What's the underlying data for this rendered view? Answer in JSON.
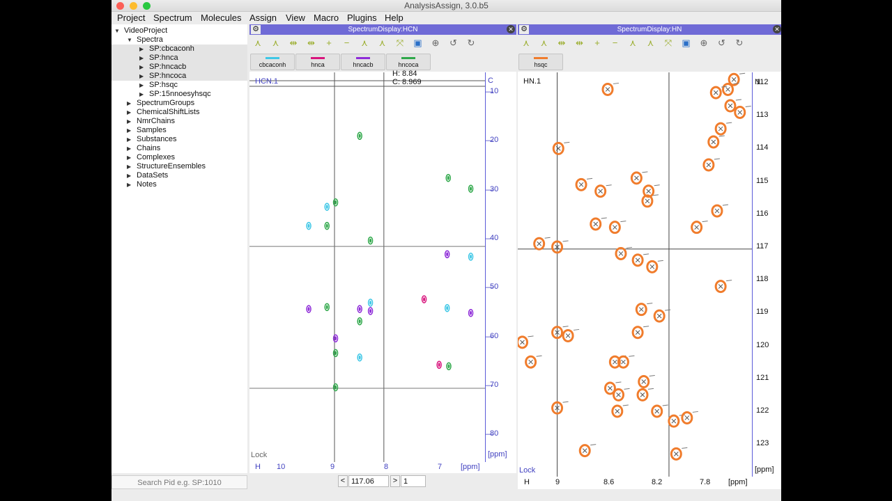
{
  "window": {
    "title": "AnalysisAssign, 3.0.b5"
  },
  "menu": [
    "Project",
    "Spectrum",
    "Molecules",
    "Assign",
    "View",
    "Macro",
    "Plugins",
    "Help"
  ],
  "sidebar": {
    "items": [
      {
        "label": "VideoProject",
        "level": 0,
        "expanded": true
      },
      {
        "label": "Spectra",
        "level": 1,
        "expanded": true
      },
      {
        "label": "SP:cbcaconh",
        "level": 2,
        "selected": true
      },
      {
        "label": "SP:hnca",
        "level": 2,
        "selected": true
      },
      {
        "label": "SP:hncacb",
        "level": 2,
        "selected": true
      },
      {
        "label": "SP:hncoca",
        "level": 2,
        "selected": true
      },
      {
        "label": "SP:hsqc",
        "level": 2
      },
      {
        "label": "SP:15nnoesyhsqc",
        "level": 2
      },
      {
        "label": "SpectrumGroups",
        "level": 1
      },
      {
        "label": "ChemicalShiftLists",
        "level": 1
      },
      {
        "label": "NmrChains",
        "level": 1
      },
      {
        "label": "Samples",
        "level": 1
      },
      {
        "label": "Substances",
        "level": 1
      },
      {
        "label": "Chains",
        "level": 1
      },
      {
        "label": "Complexes",
        "level": 1
      },
      {
        "label": "StructureEnsembles",
        "level": 1
      },
      {
        "label": "DataSets",
        "level": 1
      },
      {
        "label": "Notes",
        "level": 1
      }
    ],
    "search_placeholder": "Search Pid e.g. SP:1010"
  },
  "display1": {
    "title": "SpectrumDisplay:HCN",
    "tabs": [
      {
        "label": "cbcaconh",
        "color": "#3ec7e6"
      },
      {
        "label": "hnca",
        "color": "#d8157d"
      },
      {
        "label": "hncacb",
        "color": "#8e2bd8"
      },
      {
        "label": "hncoca",
        "color": "#2fa84a"
      }
    ],
    "strip_label": "HCN.1",
    "cursor_readout": {
      "line1": "H: 8.84",
      "line2": "C: 8.969"
    },
    "y_axis_letter": "C",
    "y_ticks": [
      "10",
      "20",
      "30",
      "40",
      "50",
      "60",
      "70",
      "80"
    ],
    "y_unit": "[ppm]",
    "x_axis_letter": "H",
    "x_ticks": [
      "10",
      "9",
      "8",
      "7"
    ],
    "x_unit": "[ppm]",
    "lock": "Lock",
    "nav": {
      "prev": "<",
      "value": "117.06",
      "next": ">",
      "count": "1"
    }
  },
  "display2": {
    "title": "SpectrumDisplay:HN",
    "tabs": [
      {
        "label": "hsqc",
        "color": "#f07c2c"
      }
    ],
    "strip_label": "HN.1",
    "y_axis_letter": "N",
    "y_ticks": [
      "112",
      "113",
      "114",
      "115",
      "116",
      "117",
      "118",
      "119",
      "120",
      "121",
      "122",
      "123"
    ],
    "y_unit": "[ppm]",
    "x_axis_letter": "H",
    "x_ticks": [
      "9",
      "8.6",
      "8.2",
      "7.8"
    ],
    "x_unit": "[ppm]",
    "lock": "Lock"
  },
  "colors": {
    "title_bar": "#6f6ad6",
    "axis": "#4040c0",
    "hsqc": "#f07c2c"
  },
  "toolbar_icons": [
    "peak-pick-icon",
    "peak-pick-1d-icon",
    "move-x-icon",
    "move-y-icon",
    "add-strip-icon",
    "remove-strip-icon",
    "lock-icon",
    "lock-y-icon",
    "zoom-fit-icon",
    "save-icon",
    "zoom-icon",
    "undo-icon",
    "redo-icon"
  ]
}
